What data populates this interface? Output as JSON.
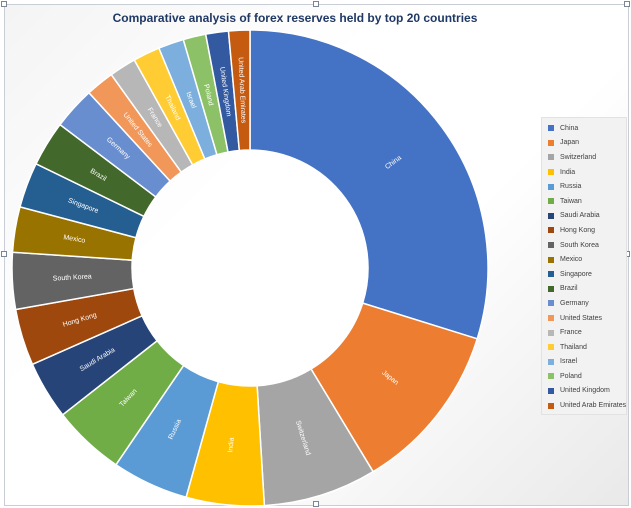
{
  "chart_data": {
    "type": "pie",
    "variant": "donut",
    "title": "Comparative analysis of forex reserves held by top 20 countries",
    "legend_position": "right",
    "unit": "approx. share of top-20 total (%)",
    "slices": [
      {
        "label": "China",
        "value": 31.0,
        "color": "#4472c4"
      },
      {
        "label": "Japan",
        "value": 12.0,
        "color": "#ed7d31"
      },
      {
        "label": "Switzerland",
        "value": 8.0,
        "color": "#a5a5a5"
      },
      {
        "label": "India",
        "value": 5.5,
        "color": "#ffc000"
      },
      {
        "label": "Russia",
        "value": 5.4,
        "color": "#5b9bd5"
      },
      {
        "label": "Taiwan",
        "value": 5.1,
        "color": "#70ad47"
      },
      {
        "label": "Saudi Arabia",
        "value": 4.1,
        "color": "#264478"
      },
      {
        "label": "Hong Kong",
        "value": 4.0,
        "color": "#9e480e"
      },
      {
        "label": "South Korea",
        "value": 4.0,
        "color": "#636363"
      },
      {
        "label": "Mexico",
        "value": 3.2,
        "color": "#997300"
      },
      {
        "label": "Singapore",
        "value": 3.2,
        "color": "#255e91"
      },
      {
        "label": "Brazil",
        "value": 3.2,
        "color": "#43682b"
      },
      {
        "label": "Germany",
        "value": 3.0,
        "color": "#698ed0"
      },
      {
        "label": "United States",
        "value": 2.0,
        "color": "#f1975a"
      },
      {
        "label": "France",
        "value": 1.9,
        "color": "#b7b7b7"
      },
      {
        "label": "Thailand",
        "value": 1.9,
        "color": "#ffcd33"
      },
      {
        "label": "Israel",
        "value": 1.8,
        "color": "#7cafdd"
      },
      {
        "label": "Poland",
        "value": 1.6,
        "color": "#8cc168"
      },
      {
        "label": "United Kingdom",
        "value": 1.6,
        "color": "#335aa1"
      },
      {
        "label": "United Arab Emirates",
        "value": 1.5,
        "color": "#c55a11"
      }
    ]
  }
}
